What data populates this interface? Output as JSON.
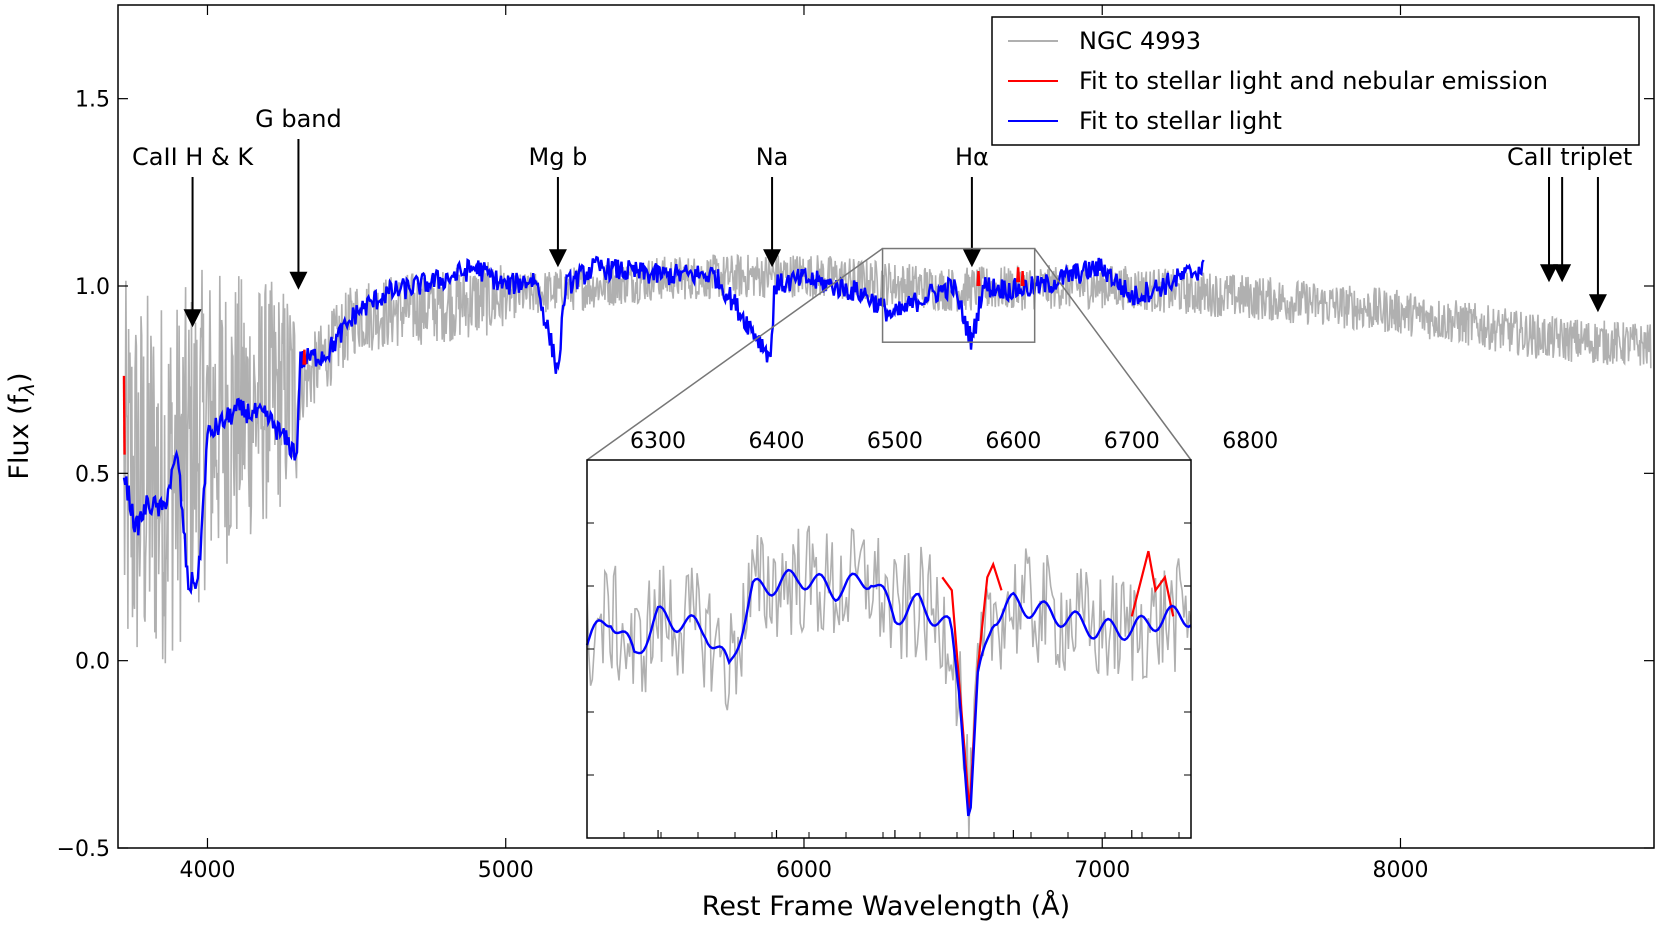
{
  "chart_data": {
    "type": "line",
    "xlabel": "Rest Frame Wavelength (Å)",
    "ylabel": "Flux (f",
    "ylabel_sub": "λ",
    "ylabel_close": ")",
    "xlim": [
      3700,
      8850
    ],
    "ylim": [
      -0.5,
      1.75
    ],
    "xticks": [
      4000,
      5000,
      6000,
      7000,
      8000
    ],
    "yticks": [
      -0.5,
      0.0,
      0.5,
      1.0,
      1.5
    ],
    "ytick_labels": [
      "−0.5",
      "0.0",
      "0.5",
      "1.0",
      "1.5"
    ],
    "grid": false,
    "legend_position": "top-right",
    "series": [
      {
        "name": "NGC 4993",
        "color": "#b0b0b0",
        "x_range": [
          3720,
          8840
        ],
        "description_values": [
          [
            3720,
            0.45
          ],
          [
            3900,
            0.5
          ],
          [
            4000,
            0.63
          ],
          [
            4300,
            0.72
          ],
          [
            4500,
            0.92
          ],
          [
            5000,
            0.97
          ],
          [
            5500,
            1.02
          ],
          [
            6000,
            1.03
          ],
          [
            6500,
            0.99
          ],
          [
            7000,
            1.0
          ],
          [
            7500,
            0.97
          ],
          [
            8000,
            0.93
          ],
          [
            8500,
            0.86
          ],
          [
            8840,
            0.84
          ]
        ]
      },
      {
        "name": "Fit to stellar light and nebular emission",
        "color": "#ff0000",
        "points": [
          [
            3720,
            0.76
          ],
          [
            3722,
            0.55
          ],
          [
            4325,
            0.83
          ],
          [
            6585,
            1.04
          ],
          [
            6718,
            1.05
          ],
          [
            6733,
            1.04
          ]
        ]
      },
      {
        "name": "Fit to stellar light",
        "color": "#0000ff",
        "x_range": [
          3720,
          7340
        ],
        "points": [
          [
            3720,
            0.5
          ],
          [
            3760,
            0.35
          ],
          [
            3800,
            0.42
          ],
          [
            3850,
            0.4
          ],
          [
            3900,
            0.55
          ],
          [
            3935,
            0.2
          ],
          [
            3970,
            0.22
          ],
          [
            4000,
            0.6
          ],
          [
            4100,
            0.67
          ],
          [
            4200,
            0.65
          ],
          [
            4300,
            0.55
          ],
          [
            4310,
            0.8
          ],
          [
            4400,
            0.82
          ],
          [
            4500,
            0.93
          ],
          [
            4600,
            0.98
          ],
          [
            4800,
            1.02
          ],
          [
            4900,
            1.05
          ],
          [
            5000,
            1.0
          ],
          [
            5100,
            1.02
          ],
          [
            5175,
            0.77
          ],
          [
            5200,
            1.0
          ],
          [
            5300,
            1.05
          ],
          [
            5500,
            1.03
          ],
          [
            5700,
            1.03
          ],
          [
            5890,
            0.81
          ],
          [
            5900,
            1.0
          ],
          [
            6000,
            1.02
          ],
          [
            6200,
            0.98
          ],
          [
            6300,
            0.92
          ],
          [
            6400,
            0.97
          ],
          [
            6500,
            1.0
          ],
          [
            6563,
            0.85
          ],
          [
            6600,
            1.0
          ],
          [
            6700,
            0.99
          ],
          [
            6800,
            1.0
          ],
          [
            6900,
            1.03
          ],
          [
            7000,
            1.05
          ],
          [
            7100,
            0.97
          ],
          [
            7200,
            1.0
          ],
          [
            7340,
            1.05
          ]
        ]
      }
    ],
    "annotations": [
      {
        "label": "CaII H & K",
        "arrow_x": 3950
      },
      {
        "label": "G band",
        "arrow_x": 4305
      },
      {
        "label": "Mg b",
        "arrow_x": 5175
      },
      {
        "label": "Na",
        "arrow_x": 5893
      },
      {
        "label": "Hα",
        "arrow_x": 6563
      },
      {
        "label": "CaII triplet",
        "arrow_x": [
          8498,
          8542,
          8662
        ]
      }
    ],
    "inset": {
      "source_box_x": [
        6240,
        6750
      ],
      "source_box_y": [
        0.85,
        1.1
      ],
      "xticks": [
        6300,
        6400,
        6500,
        6600,
        6700,
        6800
      ],
      "xlim": [
        6240,
        6750
      ]
    }
  },
  "legend": {
    "items": [
      {
        "label": "NGC 4993",
        "color": "#b0b0b0"
      },
      {
        "label": "Fit to stellar light and nebular emission",
        "color": "#ff0000"
      },
      {
        "label": "Fit to stellar light",
        "color": "#0000ff"
      }
    ]
  }
}
